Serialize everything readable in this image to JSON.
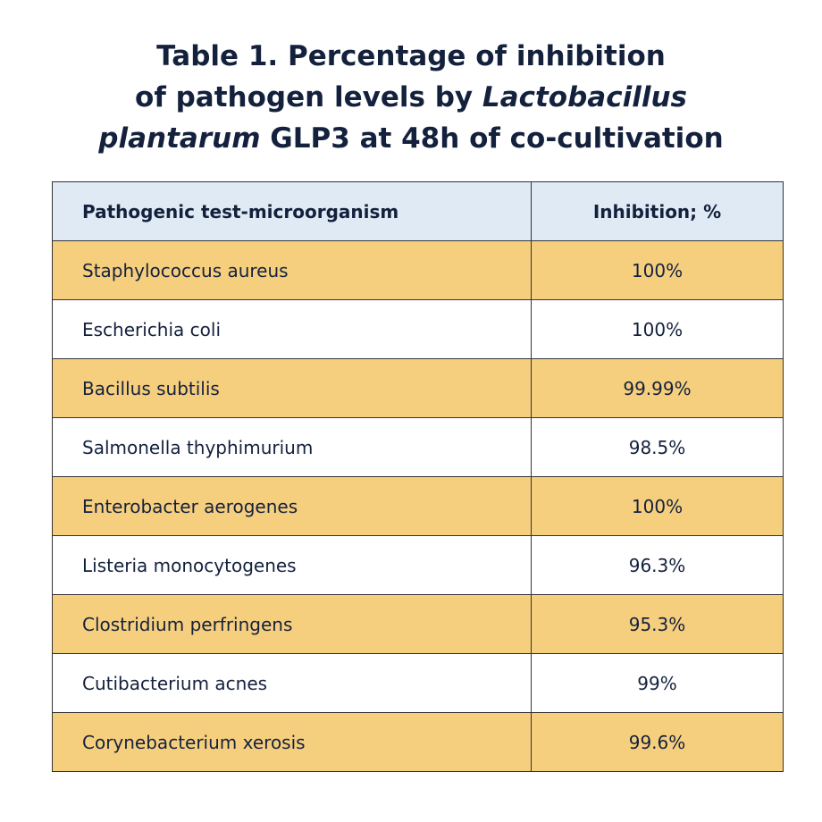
{
  "title": {
    "lines": [
      [
        "Table 1. Percentage of inhibition"
      ],
      [
        "of pathogen levels by",
        "Lactobacillus"
      ],
      [
        "plantarum",
        "GLP3 at 48h of co-cultivation"
      ]
    ]
  },
  "table": {
    "header": [
      "Pathogenic test-microorganism",
      "Inhibition; %"
    ],
    "rows": [
      [
        "Staphylococcus aureus",
        "100%"
      ],
      [
        "Escherichia coli",
        "100%"
      ],
      [
        "Bacillus subtilis",
        "99.99%"
      ],
      [
        "Salmonella thyphimurium",
        "98.5%"
      ],
      [
        "Enterobacter aerogenes",
        "100%"
      ],
      [
        "Listeria monocytogenes",
        "96.3%"
      ],
      [
        "Clostridium perfringens",
        "95.3%"
      ],
      [
        "Cutibacterium acnes",
        "99%"
      ],
      [
        "Corynebacterium xerosis",
        "99.6%"
      ]
    ]
  }
}
